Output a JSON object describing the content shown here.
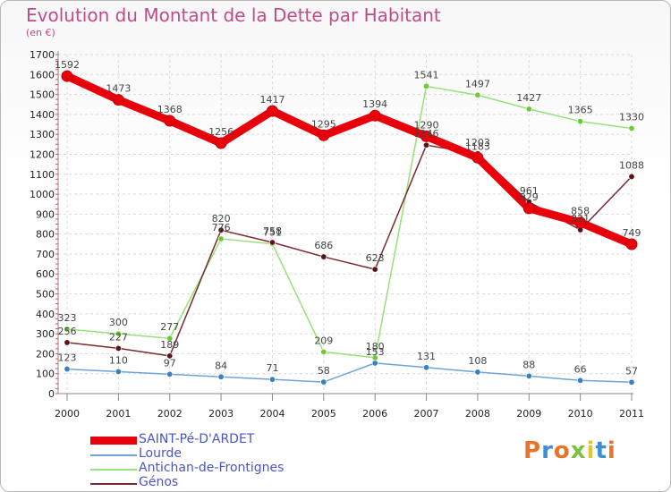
{
  "page": {
    "title": "Evolution du Montant de la Dette par Habitant",
    "unit": "(en €)",
    "logo": {
      "text": "Proxiti",
      "letter_colors": [
        "#e8732a",
        "#3a8fd6",
        "#e8732a",
        "#7ac143",
        "#e8c62a",
        "#3a8fd6",
        "#e8732a"
      ]
    }
  },
  "chart_data": {
    "type": "line",
    "title": "Evolution du Montant de la Dette par Habitant",
    "subtitle": "(en €)",
    "x": [
      "2000",
      "2001",
      "2002",
      "2003",
      "2004",
      "2005",
      "2006",
      "2007",
      "2008",
      "2009",
      "2010",
      "2011"
    ],
    "ylim": [
      0,
      1700
    ],
    "yticks": [
      0,
      100,
      200,
      300,
      400,
      500,
      600,
      700,
      800,
      900,
      1000,
      1100,
      1200,
      1300,
      1400,
      1500,
      1600,
      1700
    ],
    "grid": true,
    "legend_position": "bottom-left",
    "series": [
      {
        "name": "SAINT-Pé-D'ARDET",
        "color": "#e8000b",
        "marker": "#c8000a",
        "emphasis": true,
        "values": [
          1592,
          1473,
          1368,
          1256,
          1417,
          1295,
          1394,
          1290,
          1183,
          929,
          858,
          749
        ]
      },
      {
        "name": "Lourde",
        "color": "#6fa3d6",
        "marker": "#3a7fc0",
        "emphasis": false,
        "values": [
          123,
          110,
          97,
          84,
          71,
          58,
          153,
          131,
          108,
          88,
          66,
          57
        ]
      },
      {
        "name": "Antichan-de-Frontignes",
        "color": "#98e07a",
        "marker": "#6ccb35",
        "emphasis": false,
        "values": [
          323,
          300,
          277,
          776,
          751,
          209,
          180,
          1541,
          1497,
          1427,
          1365,
          1330
        ]
      },
      {
        "name": "Génos",
        "color": "#7a2a30",
        "marker": "#5a1418",
        "emphasis": false,
        "values": [
          256,
          227,
          189,
          820,
          758,
          686,
          623,
          1246,
          1203,
          961,
          821,
          1088
        ]
      }
    ]
  }
}
